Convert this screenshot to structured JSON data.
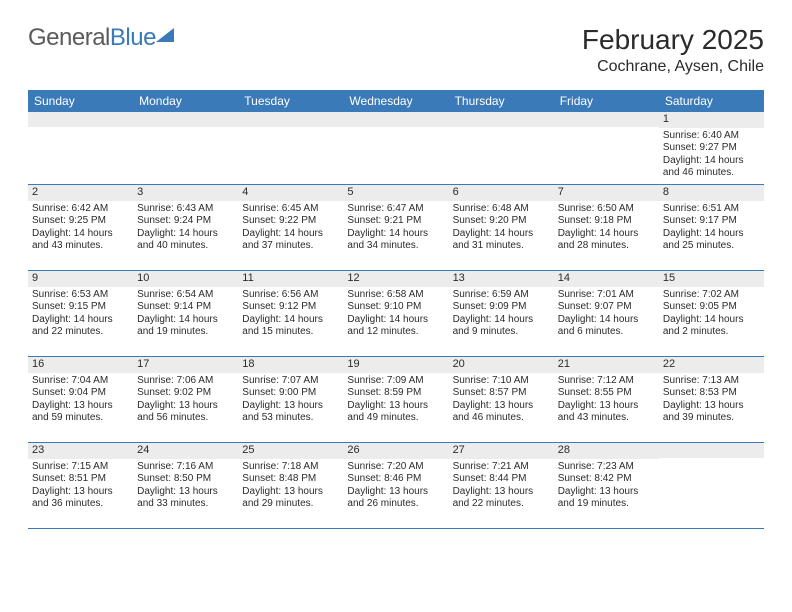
{
  "brand": {
    "part1": "General",
    "part2": "Blue"
  },
  "title": "February 2025",
  "location": "Cochrane, Aysen, Chile",
  "colors": {
    "header_bg": "#3a7ab8",
    "header_text": "#ffffff",
    "daynum_bg": "#ececec",
    "rule": "#3a7ab8",
    "text": "#2b2b2b",
    "logo_gray": "#5a5a5a",
    "logo_blue": "#3a7ab8"
  },
  "font": {
    "body_size_pt": 8,
    "title_size_pt": 21,
    "location_size_pt": 12,
    "weekday_size_pt": 9
  },
  "weekdays": [
    "Sunday",
    "Monday",
    "Tuesday",
    "Wednesday",
    "Thursday",
    "Friday",
    "Saturday"
  ],
  "weeks": [
    [
      {
        "empty": true
      },
      {
        "empty": true
      },
      {
        "empty": true
      },
      {
        "empty": true
      },
      {
        "empty": true
      },
      {
        "empty": true
      },
      {
        "num": "1",
        "sunrise": "Sunrise: 6:40 AM",
        "sunset": "Sunset: 9:27 PM",
        "daylight": "Daylight: 14 hours and 46 minutes."
      }
    ],
    [
      {
        "num": "2",
        "sunrise": "Sunrise: 6:42 AM",
        "sunset": "Sunset: 9:25 PM",
        "daylight": "Daylight: 14 hours and 43 minutes."
      },
      {
        "num": "3",
        "sunrise": "Sunrise: 6:43 AM",
        "sunset": "Sunset: 9:24 PM",
        "daylight": "Daylight: 14 hours and 40 minutes."
      },
      {
        "num": "4",
        "sunrise": "Sunrise: 6:45 AM",
        "sunset": "Sunset: 9:22 PM",
        "daylight": "Daylight: 14 hours and 37 minutes."
      },
      {
        "num": "5",
        "sunrise": "Sunrise: 6:47 AM",
        "sunset": "Sunset: 9:21 PM",
        "daylight": "Daylight: 14 hours and 34 minutes."
      },
      {
        "num": "6",
        "sunrise": "Sunrise: 6:48 AM",
        "sunset": "Sunset: 9:20 PM",
        "daylight": "Daylight: 14 hours and 31 minutes."
      },
      {
        "num": "7",
        "sunrise": "Sunrise: 6:50 AM",
        "sunset": "Sunset: 9:18 PM",
        "daylight": "Daylight: 14 hours and 28 minutes."
      },
      {
        "num": "8",
        "sunrise": "Sunrise: 6:51 AM",
        "sunset": "Sunset: 9:17 PM",
        "daylight": "Daylight: 14 hours and 25 minutes."
      }
    ],
    [
      {
        "num": "9",
        "sunrise": "Sunrise: 6:53 AM",
        "sunset": "Sunset: 9:15 PM",
        "daylight": "Daylight: 14 hours and 22 minutes."
      },
      {
        "num": "10",
        "sunrise": "Sunrise: 6:54 AM",
        "sunset": "Sunset: 9:14 PM",
        "daylight": "Daylight: 14 hours and 19 minutes."
      },
      {
        "num": "11",
        "sunrise": "Sunrise: 6:56 AM",
        "sunset": "Sunset: 9:12 PM",
        "daylight": "Daylight: 14 hours and 15 minutes."
      },
      {
        "num": "12",
        "sunrise": "Sunrise: 6:58 AM",
        "sunset": "Sunset: 9:10 PM",
        "daylight": "Daylight: 14 hours and 12 minutes."
      },
      {
        "num": "13",
        "sunrise": "Sunrise: 6:59 AM",
        "sunset": "Sunset: 9:09 PM",
        "daylight": "Daylight: 14 hours and 9 minutes."
      },
      {
        "num": "14",
        "sunrise": "Sunrise: 7:01 AM",
        "sunset": "Sunset: 9:07 PM",
        "daylight": "Daylight: 14 hours and 6 minutes."
      },
      {
        "num": "15",
        "sunrise": "Sunrise: 7:02 AM",
        "sunset": "Sunset: 9:05 PM",
        "daylight": "Daylight: 14 hours and 2 minutes."
      }
    ],
    [
      {
        "num": "16",
        "sunrise": "Sunrise: 7:04 AM",
        "sunset": "Sunset: 9:04 PM",
        "daylight": "Daylight: 13 hours and 59 minutes."
      },
      {
        "num": "17",
        "sunrise": "Sunrise: 7:06 AM",
        "sunset": "Sunset: 9:02 PM",
        "daylight": "Daylight: 13 hours and 56 minutes."
      },
      {
        "num": "18",
        "sunrise": "Sunrise: 7:07 AM",
        "sunset": "Sunset: 9:00 PM",
        "daylight": "Daylight: 13 hours and 53 minutes."
      },
      {
        "num": "19",
        "sunrise": "Sunrise: 7:09 AM",
        "sunset": "Sunset: 8:59 PM",
        "daylight": "Daylight: 13 hours and 49 minutes."
      },
      {
        "num": "20",
        "sunrise": "Sunrise: 7:10 AM",
        "sunset": "Sunset: 8:57 PM",
        "daylight": "Daylight: 13 hours and 46 minutes."
      },
      {
        "num": "21",
        "sunrise": "Sunrise: 7:12 AM",
        "sunset": "Sunset: 8:55 PM",
        "daylight": "Daylight: 13 hours and 43 minutes."
      },
      {
        "num": "22",
        "sunrise": "Sunrise: 7:13 AM",
        "sunset": "Sunset: 8:53 PM",
        "daylight": "Daylight: 13 hours and 39 minutes."
      }
    ],
    [
      {
        "num": "23",
        "sunrise": "Sunrise: 7:15 AM",
        "sunset": "Sunset: 8:51 PM",
        "daylight": "Daylight: 13 hours and 36 minutes."
      },
      {
        "num": "24",
        "sunrise": "Sunrise: 7:16 AM",
        "sunset": "Sunset: 8:50 PM",
        "daylight": "Daylight: 13 hours and 33 minutes."
      },
      {
        "num": "25",
        "sunrise": "Sunrise: 7:18 AM",
        "sunset": "Sunset: 8:48 PM",
        "daylight": "Daylight: 13 hours and 29 minutes."
      },
      {
        "num": "26",
        "sunrise": "Sunrise: 7:20 AM",
        "sunset": "Sunset: 8:46 PM",
        "daylight": "Daylight: 13 hours and 26 minutes."
      },
      {
        "num": "27",
        "sunrise": "Sunrise: 7:21 AM",
        "sunset": "Sunset: 8:44 PM",
        "daylight": "Daylight: 13 hours and 22 minutes."
      },
      {
        "num": "28",
        "sunrise": "Sunrise: 7:23 AM",
        "sunset": "Sunset: 8:42 PM",
        "daylight": "Daylight: 13 hours and 19 minutes."
      },
      {
        "empty": true
      }
    ]
  ]
}
